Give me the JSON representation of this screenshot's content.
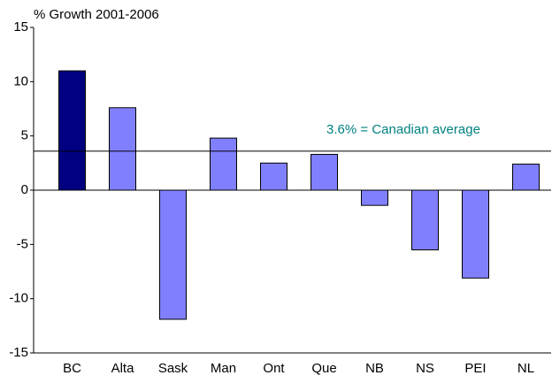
{
  "chart_data": {
    "type": "bar",
    "y_axis_label": "% Growth 2001-2006",
    "categories": [
      "BC",
      "Alta",
      "Sask",
      "Man",
      "Ont",
      "Que",
      "NB",
      "NS",
      "PEI",
      "NL"
    ],
    "values": [
      11.0,
      7.6,
      -11.9,
      4.8,
      2.5,
      3.3,
      -1.4,
      -5.5,
      -8.1,
      2.4
    ],
    "colors": [
      "#000080",
      "#8080ff",
      "#8080ff",
      "#8080ff",
      "#8080ff",
      "#8080ff",
      "#8080ff",
      "#8080ff",
      "#8080ff",
      "#8080ff"
    ],
    "ylim": [
      -15,
      15
    ],
    "yticks": [
      -15,
      -10,
      -5,
      0,
      5,
      10,
      15
    ],
    "reference_line": {
      "value": 3.6,
      "label": "3.6% = Canadian average",
      "color": "#008080"
    }
  }
}
